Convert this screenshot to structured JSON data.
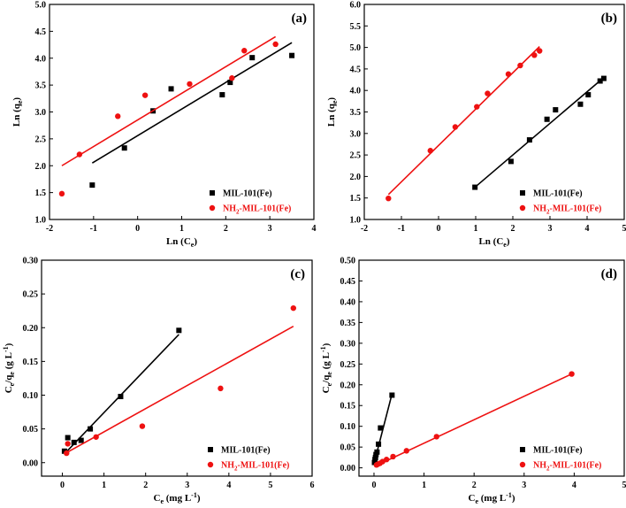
{
  "chart_data": [
    {
      "id": "a",
      "type": "scatter",
      "panel_label": "(a)",
      "xlabel": "Ln (Ce)",
      "ylabel": "Ln (qe)",
      "xlim": [
        -2,
        4
      ],
      "ylim": [
        1.0,
        5.0
      ],
      "xticks": [
        -2,
        -1,
        0,
        1,
        2,
        3,
        4
      ],
      "yticks": [
        1.0,
        1.5,
        2.0,
        2.5,
        3.0,
        3.5,
        4.0,
        4.5,
        5.0
      ],
      "ydecimals": 1,
      "legend_position": "bottom-right",
      "series": [
        {
          "name": "MIL-101(Fe)",
          "color": "#000000",
          "marker": "square",
          "x": [
            -1.03,
            -0.3,
            0.35,
            0.76,
            1.92,
            2.1,
            2.6,
            3.5
          ],
          "y": [
            1.64,
            2.33,
            3.02,
            3.43,
            3.32,
            3.55,
            4.01,
            4.05
          ],
          "fit": [
            [
              -1.03,
              2.05
            ],
            [
              3.5,
              4.29
            ]
          ]
        },
        {
          "name": "NH2-MIL-101(Fe)",
          "color": "#ee1111",
          "marker": "circle",
          "x": [
            -1.72,
            -1.32,
            -0.45,
            0.17,
            1.18,
            2.14,
            2.42,
            3.13
          ],
          "y": [
            1.48,
            2.21,
            2.92,
            3.31,
            3.52,
            3.63,
            4.14,
            4.26
          ],
          "fit": [
            [
              -1.72,
              2.0
            ],
            [
              3.13,
              4.4
            ]
          ]
        }
      ]
    },
    {
      "id": "b",
      "type": "scatter",
      "panel_label": "(b)",
      "xlabel": "Ln (Ce)",
      "ylabel": "Ln (qe)",
      "xlim": [
        -2,
        5
      ],
      "ylim": [
        1.0,
        6.0
      ],
      "xticks": [
        -2,
        -1,
        0,
        1,
        2,
        3,
        4,
        5
      ],
      "yticks": [
        1.0,
        1.5,
        2.0,
        2.5,
        3.0,
        3.5,
        4.0,
        4.5,
        5.0,
        5.5,
        6.0
      ],
      "ydecimals": 1,
      "legend_position": "bottom-right",
      "series": [
        {
          "name": "MIL-101(Fe)",
          "color": "#000000",
          "marker": "square",
          "x": [
            0.98,
            1.95,
            2.45,
            2.92,
            3.15,
            3.82,
            4.03,
            4.35,
            4.45
          ],
          "y": [
            1.75,
            2.35,
            2.85,
            3.33,
            3.55,
            3.68,
            3.9,
            4.22,
            4.28
          ],
          "fit": [
            [
              0.98,
              1.75
            ],
            [
              4.45,
              4.3
            ]
          ]
        },
        {
          "name": "NH2-MIL-101(Fe)",
          "color": "#ee1111",
          "marker": "circle",
          "x": [
            -1.35,
            -0.22,
            0.45,
            1.03,
            1.32,
            1.88,
            2.2,
            2.58,
            2.72
          ],
          "y": [
            1.49,
            2.6,
            3.15,
            3.62,
            3.93,
            4.38,
            4.58,
            4.82,
            4.92
          ],
          "fit": [
            [
              -1.35,
              1.58
            ],
            [
              2.72,
              5.02
            ]
          ]
        }
      ]
    },
    {
      "id": "c",
      "type": "scatter",
      "panel_label": "(c)",
      "xlabel": "Ce (mg L-1)",
      "ylabel": "Ce/qe (g L-1)",
      "xlim": [
        -0.5,
        6
      ],
      "ylim": [
        -0.02,
        0.3
      ],
      "xticks": [
        0,
        1,
        2,
        3,
        4,
        5,
        6
      ],
      "yticks": [
        0.0,
        0.05,
        0.1,
        0.15,
        0.2,
        0.25,
        0.3
      ],
      "ydecimals": 2,
      "legend_position": "bottom-right",
      "series": [
        {
          "name": "MIL-101(Fe)",
          "color": "#000000",
          "marker": "square",
          "x": [
            0.05,
            0.13,
            0.28,
            0.45,
            0.67,
            1.4,
            2.8
          ],
          "y": [
            0.017,
            0.037,
            0.03,
            0.033,
            0.05,
            0.098,
            0.196
          ],
          "fit": [
            [
              0.05,
              0.013
            ],
            [
              2.8,
              0.19
            ]
          ]
        },
        {
          "name": "NH2-MIL-101(Fe)",
          "color": "#ee1111",
          "marker": "circle",
          "x": [
            0.1,
            0.13,
            0.81,
            1.92,
            3.8,
            5.55
          ],
          "y": [
            0.014,
            0.028,
            0.038,
            0.054,
            0.11,
            0.229
          ],
          "fit": [
            [
              0.05,
              0.013
            ],
            [
              5.55,
              0.202
            ]
          ]
        }
      ]
    },
    {
      "id": "d",
      "type": "scatter",
      "panel_label": "(d)",
      "xlabel": "Ce (mg L-1)",
      "ylabel": "Ce/qe (g L-1)",
      "xlim": [
        -0.3,
        5
      ],
      "ylim": [
        -0.02,
        0.5
      ],
      "xticks": [
        0,
        1,
        2,
        3,
        4,
        5
      ],
      "yticks": [
        0.0,
        0.05,
        0.1,
        0.15,
        0.2,
        0.25,
        0.3,
        0.35,
        0.4,
        0.45,
        0.5
      ],
      "ydecimals": 2,
      "legend_position": "bottom-right",
      "series": [
        {
          "name": "MIL-101(Fe)",
          "color": "#000000",
          "marker": "square",
          "x": [
            0.01,
            0.02,
            0.03,
            0.04,
            0.06,
            0.09,
            0.13,
            0.36
          ],
          "y": [
            0.013,
            0.02,
            0.025,
            0.032,
            0.038,
            0.057,
            0.096,
            0.175
          ],
          "fit": [
            [
              0.0,
              0.01
            ],
            [
              0.36,
              0.178
            ]
          ]
        },
        {
          "name": "NH2-MIL-101(Fe)",
          "color": "#ee1111",
          "marker": "circle",
          "x": [
            0.05,
            0.08,
            0.12,
            0.17,
            0.25,
            0.38,
            0.65,
            1.25,
            3.95
          ],
          "y": [
            0.007,
            0.009,
            0.011,
            0.015,
            0.02,
            0.027,
            0.041,
            0.075,
            0.226
          ],
          "fit": [
            [
              0.02,
              0.004
            ],
            [
              3.95,
              0.226
            ]
          ]
        }
      ]
    }
  ]
}
